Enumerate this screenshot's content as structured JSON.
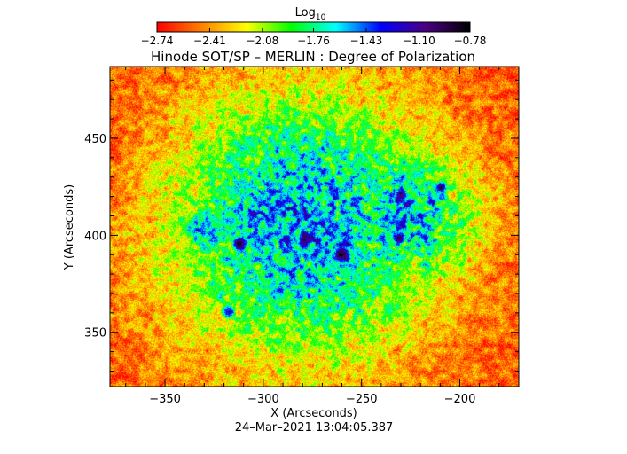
{
  "chart_data": {
    "type": "heatmap",
    "title": "Hinode SOT/SP – MERLIN : Degree of Polarization",
    "xlabel": "X (Arcseconds)",
    "ylabel": "Y (Arcseconds)",
    "xlim": [
      -378,
      -170
    ],
    "ylim": [
      322,
      487
    ],
    "xticks": [
      -350,
      -300,
      -250,
      -200
    ],
    "xtick_labels": [
      "−350",
      "−300",
      "−250",
      "−200"
    ],
    "yticks": [
      350,
      400,
      450
    ],
    "ytick_labels": [
      "350",
      "400",
      "450"
    ],
    "timestamp": "24–Mar–2021 13:04:05.387",
    "colorbar": {
      "label_base": "Log",
      "label_sub": "10",
      "range": [
        -2.74,
        -0.78
      ],
      "ticks": [
        -2.74,
        -2.41,
        -2.08,
        -1.76,
        -1.43,
        -1.1,
        -0.78
      ],
      "tick_labels": [
        "−2.74",
        "−2.41",
        "−2.08",
        "−1.76",
        "−1.43",
        "−1.10",
        "−0.78"
      ],
      "colormap": [
        "#ff0000",
        "#ff8000",
        "#ffff00",
        "#00ff00",
        "#00ffff",
        "#0000ff",
        "#4b0082",
        "#000000"
      ]
    },
    "features": [
      {
        "x": -280,
        "y": 405,
        "value": -1.5,
        "spread": 52,
        "kind": "plage"
      },
      {
        "x": -228,
        "y": 410,
        "value": -1.55,
        "spread": 28,
        "kind": "plage"
      },
      {
        "x": -330,
        "y": 404,
        "value": -1.35,
        "spread": 9,
        "kind": "plage"
      },
      {
        "x": -312,
        "y": 396,
        "value": -0.82,
        "spread": 3.5,
        "kind": "spot"
      },
      {
        "x": -260,
        "y": 390,
        "value": -0.8,
        "spread": 4,
        "kind": "spot"
      },
      {
        "x": -231,
        "y": 399,
        "value": -0.95,
        "spread": 3,
        "kind": "spot"
      },
      {
        "x": -230,
        "y": 421,
        "value": -1.0,
        "spread": 3,
        "kind": "spot"
      },
      {
        "x": -210,
        "y": 425,
        "value": -1.05,
        "spread": 2.5,
        "kind": "spot"
      },
      {
        "x": -318,
        "y": 361,
        "value": -1.2,
        "spread": 3,
        "kind": "spot"
      }
    ],
    "background_value": -2.6
  }
}
